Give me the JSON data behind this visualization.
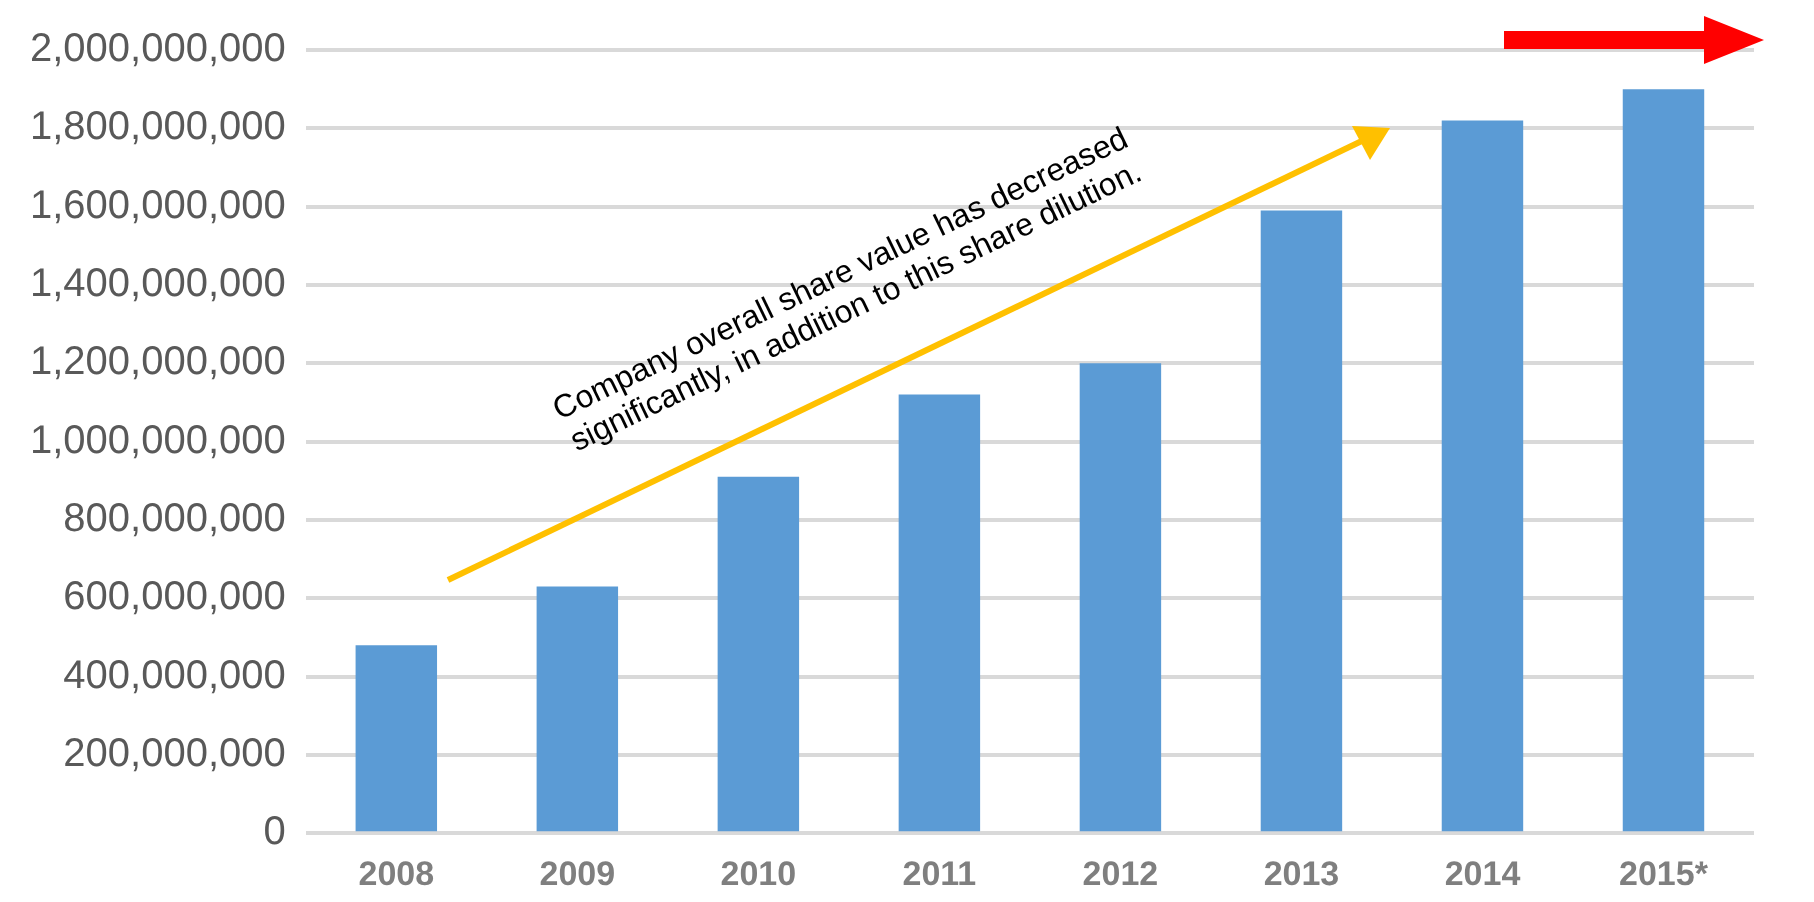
{
  "chart_data": {
    "type": "bar",
    "categories": [
      "2008",
      "2009",
      "2010",
      "2011",
      "2012",
      "2013",
      "2014",
      "2015*"
    ],
    "values": [
      480000000,
      630000000,
      910000000,
      1120000000,
      1200000000,
      1590000000,
      1820000000,
      1900000000
    ],
    "color": "#5b9bd5",
    "ylim": [
      0,
      2000000000
    ],
    "yticks": [
      0,
      {
        "value": 200000000,
        "label": "200,000,000"
      },
      {
        "value": 400000000,
        "label": "400,000,000"
      },
      {
        "value": 600000000,
        "label": "600,000,000"
      },
      {
        "value": 800000000,
        "label": "800,000,000"
      },
      {
        "value": 1000000000,
        "label": "1,000,000,000"
      },
      {
        "value": 1200000000,
        "label": "1,200,000,000"
      },
      {
        "value": 1400000000,
        "label": "1,400,000,000"
      },
      {
        "value": 1600000000,
        "label": "1,600,000,000"
      },
      {
        "value": 1800000000,
        "label": "1,800,000,000"
      },
      {
        "value": 2000000000,
        "label": "2,000,000,000"
      }
    ],
    "grid": "y",
    "legend": false,
    "annotations": [
      "Company overall share value has decreased significantly, in addition to this share dilution."
    ]
  }
}
